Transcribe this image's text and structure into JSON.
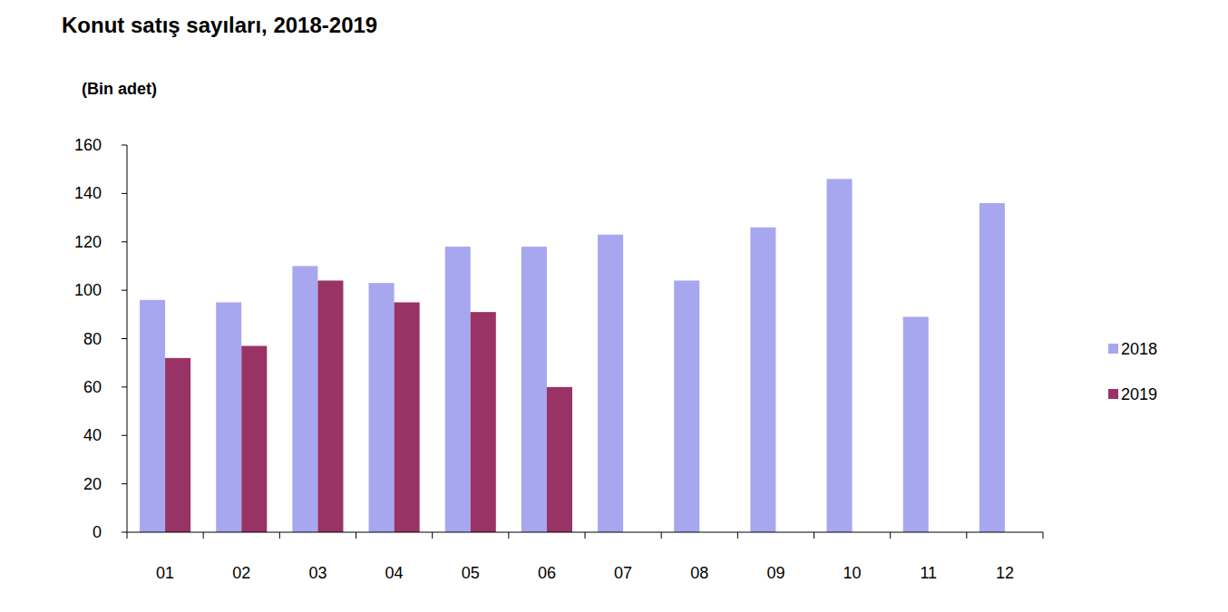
{
  "chart_data": {
    "type": "bar",
    "title": "Konut satış sayıları, 2018-2019",
    "subtitle": "(Bin adet)",
    "categories": [
      "01",
      "02",
      "03",
      "04",
      "05",
      "06",
      "07",
      "08",
      "09",
      "10",
      "11",
      "12"
    ],
    "series": [
      {
        "name": "2018",
        "color": "#a7a7f0",
        "values": [
          96,
          95,
          110,
          103,
          118,
          118,
          123,
          104,
          126,
          146,
          89,
          136
        ]
      },
      {
        "name": "2019",
        "color": "#993366",
        "values": [
          72,
          77,
          104,
          95,
          91,
          60,
          null,
          null,
          null,
          null,
          null,
          null
        ]
      }
    ],
    "ylim": [
      0,
      160
    ],
    "yticks": [
      0,
      20,
      40,
      60,
      80,
      100,
      120,
      140,
      160
    ],
    "grid": false,
    "legend": "right"
  }
}
